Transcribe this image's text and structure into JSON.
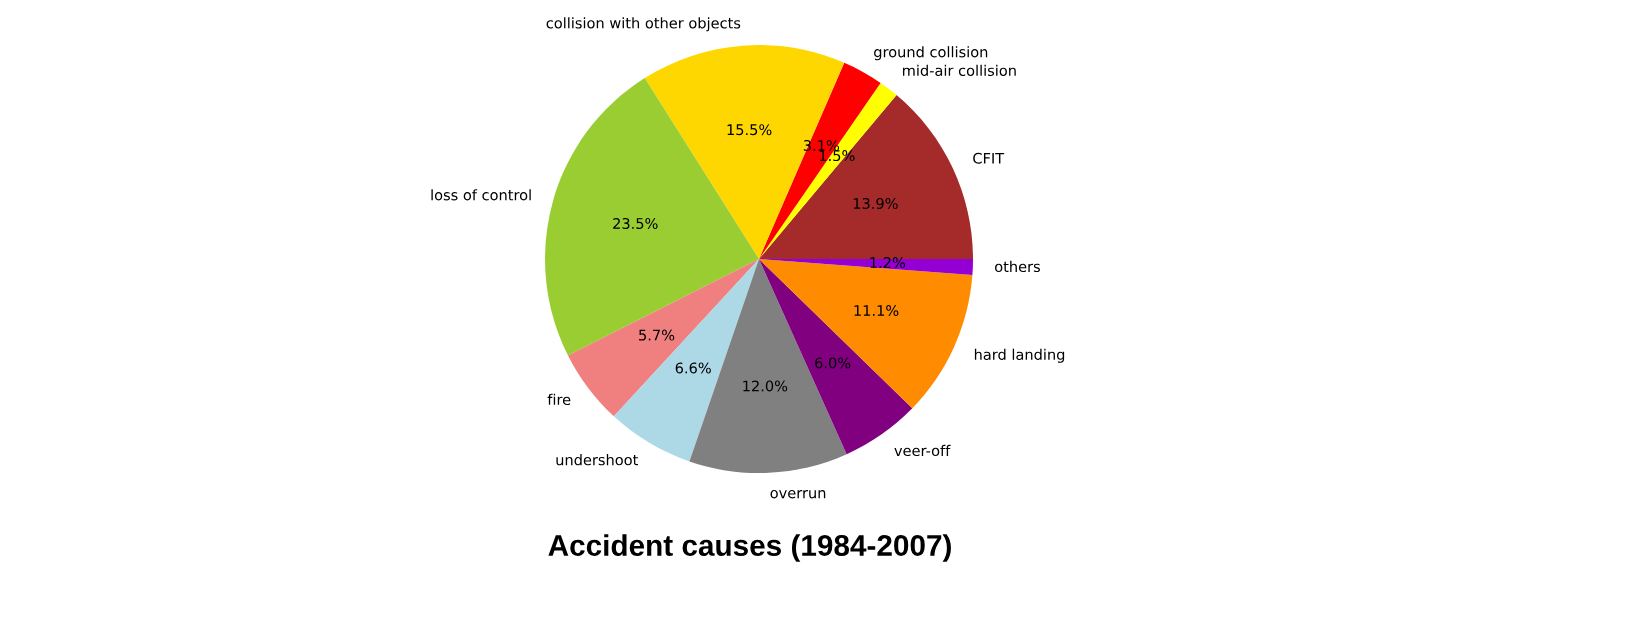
{
  "chart_data": {
    "type": "pie",
    "title": "Accident causes (1984-2007)",
    "categories": [
      "CFIT",
      "mid-air collision",
      "ground collision",
      "collision with other objects",
      "loss of control",
      "fire",
      "undershoot",
      "overrun",
      "veer-off",
      "hard landing",
      "others"
    ],
    "values": [
      13.9,
      1.5,
      3.1,
      15.5,
      23.5,
      5.7,
      6.6,
      12.0,
      6.0,
      11.1,
      1.2
    ],
    "colors": [
      "#a52a2a",
      "#ffff00",
      "#ff0000",
      "#ffd700",
      "#9acd32",
      "#f08080",
      "#add8e6",
      "#808080",
      "#800080",
      "#ff8c00",
      "#9400d3"
    ],
    "value_labels": [
      "13.9%",
      "1.5%",
      "3.1%",
      "15.5%",
      "23.5%",
      "5.7%",
      "6.6%",
      "12.0%",
      "6.0%",
      "11.1%",
      "1.2%"
    ]
  }
}
